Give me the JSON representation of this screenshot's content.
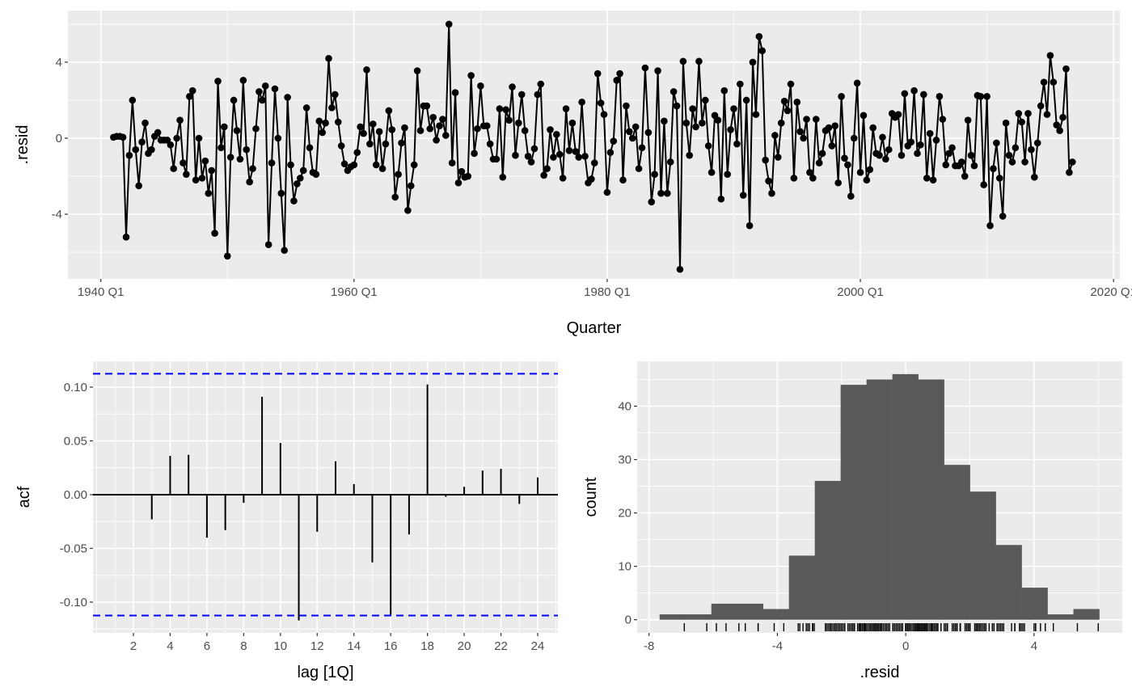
{
  "chart_data": [
    {
      "type": "line",
      "title": "",
      "xlabel": "Quarter",
      "ylabel": ".resid",
      "x_start_year": 1941,
      "frequency_per_year": 4,
      "xlim": [
        1937.4,
        2020.5
      ],
      "ylim": [
        -7.4,
        6.72
      ],
      "grid": true,
      "x_tick_values": [
        1940,
        1960,
        1980,
        2000,
        2020
      ],
      "x_tick_labels": [
        "1940 Q1",
        "1960 Q1",
        "1980 Q1",
        "2000 Q1",
        "2020 Q1"
      ],
      "x_minor_values": [
        1950,
        1970,
        1990,
        2010
      ],
      "y_tick_values": [
        -4,
        0,
        4
      ],
      "y_tick_labels": [
        "-4",
        "0",
        "4"
      ],
      "y_minor_values": [
        -6,
        -2,
        2,
        6
      ],
      "values": [
        0.05,
        0.1,
        0.1,
        0.05,
        -5.2,
        -0.9,
        2.0,
        -0.6,
        -2.5,
        -0.2,
        0.8,
        -0.8,
        -0.6,
        0.1,
        0.3,
        -0.1,
        -0.1,
        -0.1,
        -0.35,
        -1.6,
        0,
        0.95,
        -1.3,
        -1.9,
        2.2,
        2.5,
        -2.2,
        0,
        -2.1,
        -1.2,
        -2.9,
        -1.7,
        -5.0,
        3.0,
        -0.5,
        0.6,
        -6.2,
        -1.0,
        2.0,
        0.4,
        -1.1,
        3.05,
        -0.6,
        -2.3,
        -1.6,
        0.5,
        2.45,
        2.0,
        2.75,
        -5.6,
        -1.3,
        2.6,
        0,
        -2.9,
        -5.9,
        2.15,
        -1.4,
        -3.3,
        -2.4,
        -2.1,
        -1.7,
        1.6,
        -0.5,
        -1.8,
        -1.9,
        0.9,
        0.3,
        0.8,
        4.2,
        1.6,
        2.3,
        0.85,
        -0.4,
        -1.35,
        -1.7,
        -1.5,
        -1.4,
        -0.75,
        0.6,
        0.25,
        3.6,
        -0.3,
        0.75,
        -1.4,
        0.35,
        -1.6,
        -0.3,
        1.45,
        0.45,
        -3.1,
        -1.9,
        -0.25,
        0.55,
        -3.8,
        -2.5,
        -1.4,
        3.55,
        0.4,
        1.7,
        1.7,
        0.5,
        1.1,
        -0.1,
        0.65,
        1.0,
        0.15,
        6.0,
        -1.3,
        2.4,
        -2.35,
        -1.75,
        -2.05,
        -2.0,
        3.3,
        -0.8,
        0.5,
        2.75,
        0.65,
        0.65,
        -0.3,
        -1.1,
        -1.1,
        1.55,
        -2.05,
        1.5,
        0.95,
        2.7,
        -0.9,
        0.8,
        2.3,
        0.4,
        -0.95,
        -1.25,
        -0.55,
        2.3,
        2.85,
        -1.95,
        -1.6,
        0.45,
        -1.0,
        0.2,
        -0.85,
        -2.1,
        1.55,
        -0.65,
        0.8,
        -0.7,
        -1.0,
        1.9,
        -0.95,
        -2.35,
        -2.15,
        -1.3,
        3.4,
        1.85,
        1.25,
        -2.85,
        -0.75,
        -0.15,
        3.05,
        3.4,
        -2.2,
        1.7,
        0.35,
        0,
        0.6,
        -1.6,
        -0.5,
        3.7,
        0.3,
        -3.35,
        -1.9,
        3.55,
        -2.9,
        0.9,
        -2.9,
        -1.25,
        2.45,
        1.7,
        -6.9,
        4.05,
        0.8,
        -0.9,
        1.55,
        0.6,
        4.05,
        0.8,
        2.0,
        -0.4,
        -1.8,
        1.2,
        0.95,
        -3.2,
        2.5,
        -1.9,
        0.45,
        1.55,
        -0.3,
        2.85,
        -3.0,
        2.0,
        -4.6,
        4.0,
        1.25,
        5.35,
        4.6,
        -1.15,
        -2.25,
        -2.9,
        0.15,
        -1.0,
        0.8,
        1.95,
        1.45,
        2.85,
        -2.1,
        1.9,
        0.35,
        0,
        1.0,
        -1.8,
        -2.1,
        1.0,
        -1.3,
        -0.8,
        0.4,
        0.55,
        -0.4,
        0.65,
        -2.35,
        2.2,
        -1.05,
        -1.4,
        -3.05,
        0,
        2.9,
        -1.8,
        1.2,
        -2.2,
        -1.65,
        0.55,
        -0.8,
        -0.9,
        0.05,
        -1.1,
        -0.6,
        1.3,
        1.1,
        1.25,
        -0.9,
        2.35,
        -0.4,
        -0.2,
        2.5,
        -0.8,
        -0.35,
        2.3,
        -2.1,
        0.25,
        -2.2,
        -0.1,
        2.2,
        1.0,
        -1.4,
        -0.8,
        -0.5,
        -1.45,
        -1.45,
        -1.25,
        -2.0,
        0.95,
        -0.9,
        -1.45,
        2.25,
        2.2,
        -2.45,
        2.2,
        -4.6,
        -1.6,
        -0.25,
        -2.1,
        -4.1,
        0.8,
        -0.9,
        -1.25,
        -0.5,
        1.3,
        0.85,
        -1.25,
        1.3,
        -0.6,
        -2.05,
        -0.25,
        1.7,
        2.95,
        1.25,
        4.35,
        2.95,
        0.7,
        0.4,
        1.1,
        3.65,
        -1.8,
        -1.25
      ]
    },
    {
      "type": "bar",
      "subtype": "acf",
      "xlabel": "lag [1Q]",
      "ylabel": "acf",
      "lags": [
        1,
        2,
        3,
        4,
        5,
        6,
        7,
        8,
        9,
        10,
        11,
        12,
        13,
        14,
        15,
        16,
        17,
        18,
        19,
        20,
        21,
        22,
        23,
        24
      ],
      "values": [
        0,
        0,
        -0.023,
        0.036,
        0.037,
        -0.04,
        -0.033,
        -0.0076,
        0.091,
        0.048,
        -0.117,
        -0.0345,
        0.031,
        0.0098,
        -0.063,
        -0.1116,
        -0.037,
        0.1025,
        -0.002,
        0.0073,
        0.0224,
        0.024,
        -0.0086,
        0.016
      ],
      "ci_bound": 0.1124,
      "ci_color": "#0000ff",
      "xlim": [
        -0.2,
        25.1
      ],
      "ylim": [
        -0.1286,
        0.124
      ],
      "x_tick_values": [
        2,
        4,
        6,
        8,
        10,
        12,
        14,
        16,
        18,
        20,
        22,
        24
      ],
      "x_tick_labels": [
        "2",
        "4",
        "6",
        "8",
        "10",
        "12",
        "14",
        "16",
        "18",
        "20",
        "22",
        "24"
      ],
      "y_tick_values": [
        -0.1,
        -0.05,
        0,
        0.05,
        0.1
      ],
      "y_tick_labels": [
        "-0.10",
        "-0.05",
        "0.00",
        "0.05",
        "0.10"
      ],
      "y_minor_values": [
        -0.125,
        -0.075,
        -0.025,
        0.025,
        0.075
      ]
    },
    {
      "type": "bar",
      "subtype": "histogram",
      "xlabel": ".resid",
      "ylabel": "count",
      "bin_edges": [
        -7.67,
        -6.864,
        -6.058,
        -5.252,
        -4.446,
        -3.64,
        -2.834,
        -2.028,
        -1.222,
        -0.416,
        0.39,
        1.196,
        2.002,
        2.808,
        3.614,
        4.42,
        5.226,
        6.032
      ],
      "counts": [
        1,
        1,
        3,
        3,
        2,
        12,
        26,
        44,
        45,
        46,
        45,
        29,
        24,
        14,
        6,
        1,
        2
      ],
      "bar_color": "#595959",
      "rug": true,
      "xlim": [
        -8.37,
        6.75
      ],
      "ylim": [
        -2.47,
        48.4
      ],
      "x_tick_values": [
        -8,
        -4,
        0,
        4
      ],
      "x_tick_labels": [
        "-8",
        "-4",
        "0",
        "4"
      ],
      "x_minor_values": [
        -6,
        -2,
        2,
        6
      ],
      "y_tick_values": [
        0,
        10,
        20,
        30,
        40
      ],
      "y_tick_labels": [
        "0",
        "10",
        "20",
        "30",
        "40"
      ],
      "y_minor_values": [
        5,
        15,
        25,
        35,
        45
      ]
    }
  ]
}
